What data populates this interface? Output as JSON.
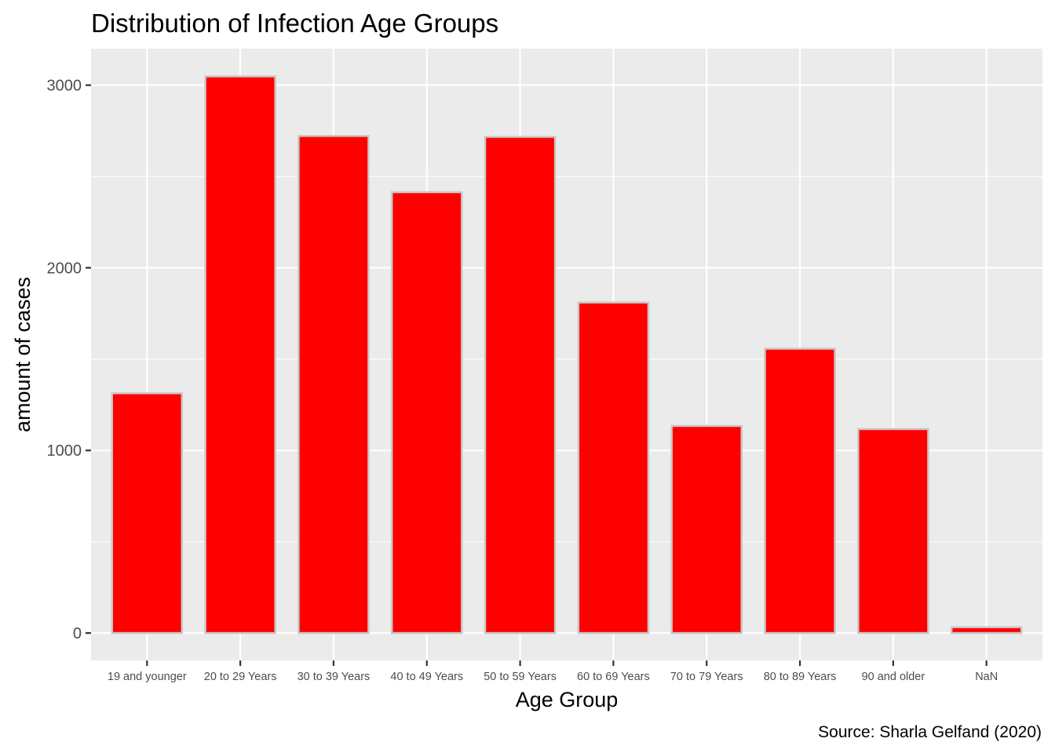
{
  "chart_data": {
    "type": "bar",
    "title": "Distribution of Infection Age Groups",
    "xlabel": "Age Group",
    "ylabel": "amount of cases",
    "caption": "Source: Sharla Gelfand (2020)",
    "categories": [
      "19 and younger",
      "20 to 29 Years",
      "30 to 39 Years",
      "40 to 49 Years",
      "50 to 59 Years",
      "60 to 69 Years",
      "70 to 79 Years",
      "80 to 89 Years",
      "90 and older",
      "NaN"
    ],
    "values": [
      1313,
      3048,
      2722,
      2414,
      2717,
      1810,
      1134,
      1557,
      1117,
      32
    ],
    "ylim": [
      -150,
      3200
    ],
    "yticks": [
      0,
      1000,
      2000,
      3000
    ],
    "ytick_labels": [
      "0",
      "1000",
      "2000",
      "3000"
    ],
    "grid": true,
    "legend": "none",
    "colors": {
      "bar_fill": "#ff0000",
      "bar_outline": "#c8c8c8",
      "panel": "#ebebeb",
      "gridline": "#ffffff"
    }
  }
}
